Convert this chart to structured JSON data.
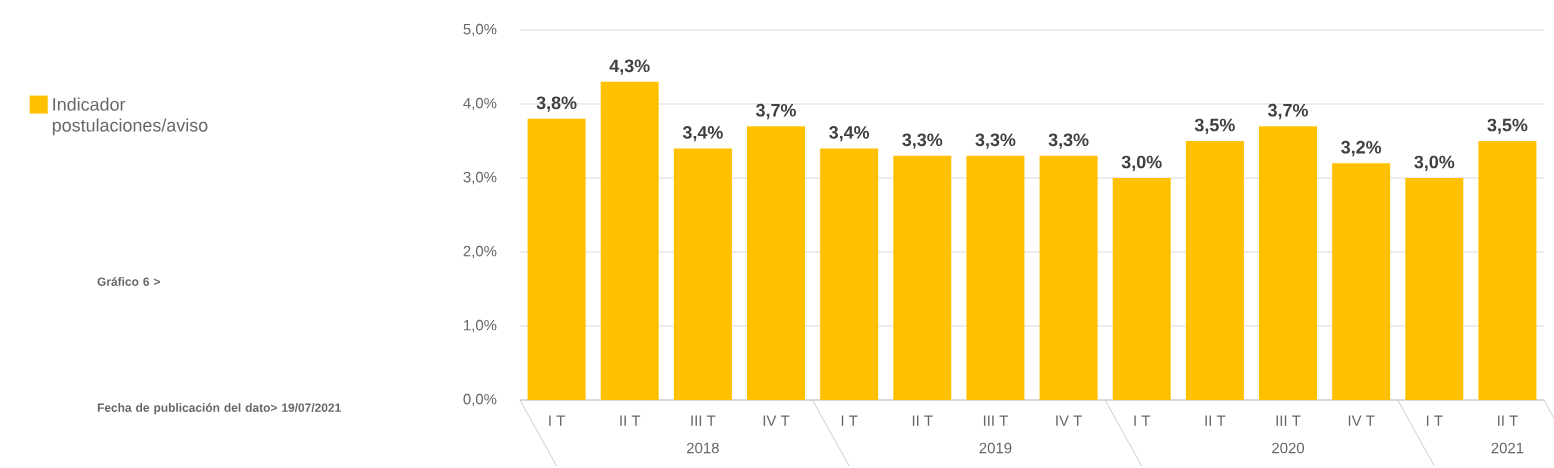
{
  "chart_data": {
    "type": "bar",
    "categories": [
      "I T",
      "II T",
      "III T",
      "IV T",
      "I T",
      "II T",
      "III T",
      "IV T",
      "I T",
      "II T",
      "III T",
      "IV T",
      "I T",
      "II T"
    ],
    "series": [
      {
        "name": "Indicador postulaciones/aviso",
        "color": "#ffc000",
        "values": [
          3.8,
          4.3,
          3.4,
          3.7,
          3.4,
          3.3,
          3.3,
          3.3,
          3.0,
          3.5,
          3.7,
          3.2,
          3.0,
          3.5
        ],
        "value_labels": [
          "3,8%",
          "4,3%",
          "3,4%",
          "3,7%",
          "3,4%",
          "3,3%",
          "3,3%",
          "3,3%",
          "3,0%",
          "3,5%",
          "3,7%",
          "3,2%",
          "3,0%",
          "3,5%"
        ]
      }
    ],
    "ylim": [
      0,
      5
    ],
    "yticks": [
      {
        "value": 0,
        "label": "0,0%"
      },
      {
        "value": 1,
        "label": "1,0%"
      },
      {
        "value": 2,
        "label": "2,0%"
      },
      {
        "value": 3,
        "label": "3,0%"
      },
      {
        "value": 4,
        "label": "4,0%"
      },
      {
        "value": 5,
        "label": "5,0%"
      }
    ],
    "grid": "y",
    "legend": "left",
    "annotations": [
      "2018",
      "2019",
      "2020",
      "2021",
      "Gráfico 6 >",
      "Fecha de publicación del dato> 19/07/2021"
    ]
  }
}
